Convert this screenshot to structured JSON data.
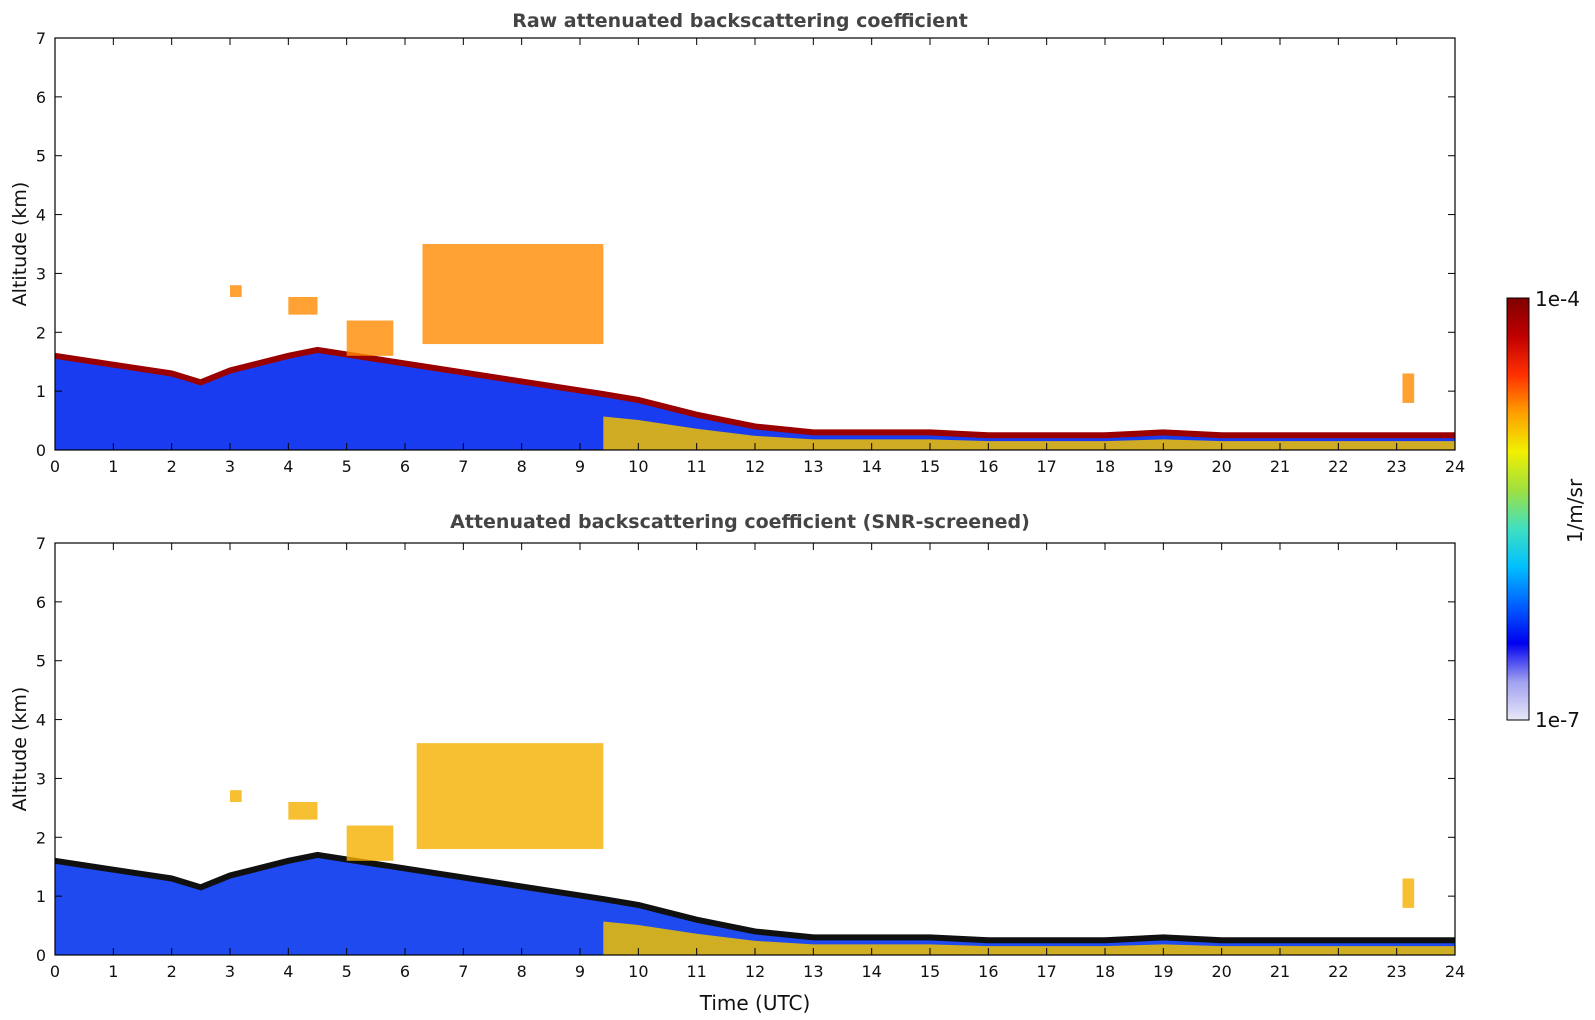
{
  "chart_data": [
    {
      "type": "heatmap",
      "title": "Raw attenuated backscattering coefficient",
      "xlabel": "",
      "ylabel": "Altitude (km)",
      "xlim": [
        0,
        24
      ],
      "ylim": [
        0,
        7
      ],
      "x_ticks": [
        0,
        1,
        2,
        3,
        4,
        5,
        6,
        7,
        8,
        9,
        10,
        11,
        12,
        13,
        14,
        15,
        16,
        17,
        18,
        19,
        20,
        21,
        22,
        23,
        24
      ],
      "y_ticks": [
        0,
        1,
        2,
        3,
        4,
        5,
        6,
        7
      ],
      "layer_top_km": [
        [
          0,
          1.6
        ],
        [
          1,
          1.45
        ],
        [
          2,
          1.3
        ],
        [
          2.5,
          1.15
        ],
        [
          3,
          1.35
        ],
        [
          4,
          1.6
        ],
        [
          4.5,
          1.7
        ],
        [
          9.4,
          0.95
        ],
        [
          10,
          0.85
        ],
        [
          11,
          0.6
        ],
        [
          12,
          0.4
        ],
        [
          13,
          0.3
        ],
        [
          14,
          0.3
        ],
        [
          15,
          0.3
        ],
        [
          16,
          0.25
        ],
        [
          17,
          0.25
        ],
        [
          18,
          0.25
        ],
        [
          19,
          0.3
        ],
        [
          20,
          0.25
        ],
        [
          21,
          0.25
        ],
        [
          22,
          0.25
        ],
        [
          23,
          0.25
        ],
        [
          24,
          0.25
        ]
      ],
      "features": [
        {
          "x": [
            6.3,
            9.4
          ],
          "y": [
            1.8,
            3.5
          ],
          "level": "high"
        },
        {
          "x": [
            4.0,
            4.5
          ],
          "y": [
            2.3,
            2.6
          ],
          "level": "high"
        },
        {
          "x": [
            3.0,
            3.2
          ],
          "y": [
            2.6,
            2.8
          ],
          "level": "high"
        },
        {
          "x": [
            5.0,
            5.8
          ],
          "y": [
            1.6,
            2.2
          ],
          "level": "high"
        },
        {
          "x": [
            23.1,
            23.3
          ],
          "y": [
            0.8,
            1.3
          ],
          "level": "high"
        }
      ]
    },
    {
      "type": "heatmap",
      "title": "Attenuated backscattering coefficient (SNR-screened)",
      "xlabel": "Time (UTC)",
      "ylabel": "Altitude (km)",
      "xlim": [
        0,
        24
      ],
      "ylim": [
        0,
        7
      ],
      "x_ticks": [
        0,
        1,
        2,
        3,
        4,
        5,
        6,
        7,
        8,
        9,
        10,
        11,
        12,
        13,
        14,
        15,
        16,
        17,
        18,
        19,
        20,
        21,
        22,
        23,
        24
      ],
      "y_ticks": [
        0,
        1,
        2,
        3,
        4,
        5,
        6,
        7
      ],
      "layer_top_km": [
        [
          0,
          1.6
        ],
        [
          1,
          1.45
        ],
        [
          2,
          1.3
        ],
        [
          2.5,
          1.15
        ],
        [
          3,
          1.35
        ],
        [
          4,
          1.6
        ],
        [
          4.5,
          1.7
        ],
        [
          9.4,
          0.95
        ],
        [
          10,
          0.85
        ],
        [
          11,
          0.6
        ],
        [
          12,
          0.4
        ],
        [
          13,
          0.3
        ],
        [
          14,
          0.3
        ],
        [
          15,
          0.3
        ],
        [
          16,
          0.25
        ],
        [
          17,
          0.25
        ],
        [
          18,
          0.25
        ],
        [
          19,
          0.3
        ],
        [
          20,
          0.25
        ],
        [
          21,
          0.25
        ],
        [
          22,
          0.25
        ],
        [
          23,
          0.25
        ],
        [
          24,
          0.25
        ]
      ],
      "features": [
        {
          "x": [
            6.2,
            9.4
          ],
          "y": [
            1.8,
            3.6
          ],
          "level": "high"
        },
        {
          "x": [
            4.0,
            4.5
          ],
          "y": [
            2.3,
            2.6
          ],
          "level": "high"
        },
        {
          "x": [
            3.0,
            3.2
          ],
          "y": [
            2.6,
            2.8
          ],
          "level": "high"
        },
        {
          "x": [
            5.0,
            5.8
          ],
          "y": [
            1.6,
            2.2
          ],
          "level": "high"
        },
        {
          "x": [
            23.1,
            23.3
          ],
          "y": [
            0.8,
            1.3
          ],
          "level": "high"
        }
      ]
    }
  ],
  "colorbar": {
    "label": "1/m/sr",
    "max_label": "1e-4",
    "min_label": "1e-7",
    "scale": "log",
    "range": [
      1e-07,
      0.0001
    ],
    "colors": [
      "#e8e8f8",
      "#a0a0f0",
      "#0000f0",
      "#0060ff",
      "#00c0ff",
      "#40e0c0",
      "#a0e040",
      "#f0f000",
      "#ffa000",
      "#ff3000",
      "#c00000",
      "#800000"
    ]
  }
}
